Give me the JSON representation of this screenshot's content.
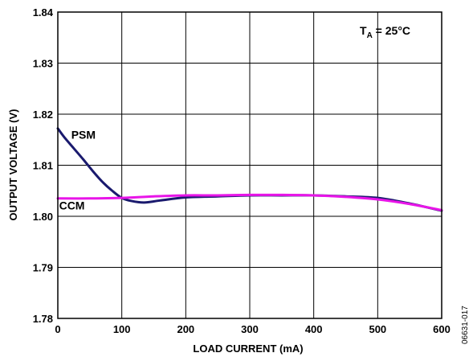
{
  "chart_data": {
    "type": "line",
    "title": "",
    "xlabel": "LOAD CURRENT (mA)",
    "ylabel": "OUTPUT VOLTAGE (V)",
    "xlim": [
      0,
      600
    ],
    "ylim": [
      1.78,
      1.84
    ],
    "x_ticks": [
      0,
      100,
      200,
      300,
      400,
      500,
      600
    ],
    "y_ticks": [
      1.78,
      1.79,
      1.8,
      1.81,
      1.82,
      1.83,
      1.84
    ],
    "x_tick_labels": [
      "0",
      "100",
      "200",
      "300",
      "400",
      "500",
      "600"
    ],
    "y_tick_labels": [
      "1.78",
      "1.79",
      "1.80",
      "1.81",
      "1.82",
      "1.83",
      "1.84"
    ],
    "grid": true,
    "condition_label": {
      "prefix": "T",
      "subscript": "A",
      "suffix": " = 25°C"
    },
    "figure_id": "06631-017",
    "series": [
      {
        "name": "PSM",
        "color": "#1a1a6e",
        "x": [
          0,
          10,
          25,
          40,
          55,
          70,
          85,
          100,
          115,
          135,
          160,
          200,
          250,
          300,
          350,
          400,
          450,
          500,
          550,
          600
        ],
        "y": [
          1.8172,
          1.8155,
          1.8133,
          1.8111,
          1.8088,
          1.8067,
          1.805,
          1.8036,
          1.803,
          1.8027,
          1.8031,
          1.8037,
          1.8039,
          1.8041,
          1.8041,
          1.8041,
          1.8039,
          1.8036,
          1.8025,
          1.8011
        ]
      },
      {
        "name": "CCM",
        "color": "#e815e8",
        "x": [
          0,
          50,
          100,
          150,
          200,
          250,
          300,
          350,
          400,
          450,
          500,
          550,
          600
        ],
        "y": [
          1.8035,
          1.8035,
          1.8036,
          1.8039,
          1.8041,
          1.8041,
          1.8042,
          1.8042,
          1.8041,
          1.8038,
          1.8033,
          1.8024,
          1.8012
        ]
      }
    ],
    "series_labels": [
      {
        "text": "PSM",
        "x": 40,
        "y": 1.8152
      },
      {
        "text": "CCM",
        "x": 22,
        "y": 1.8013
      }
    ]
  }
}
